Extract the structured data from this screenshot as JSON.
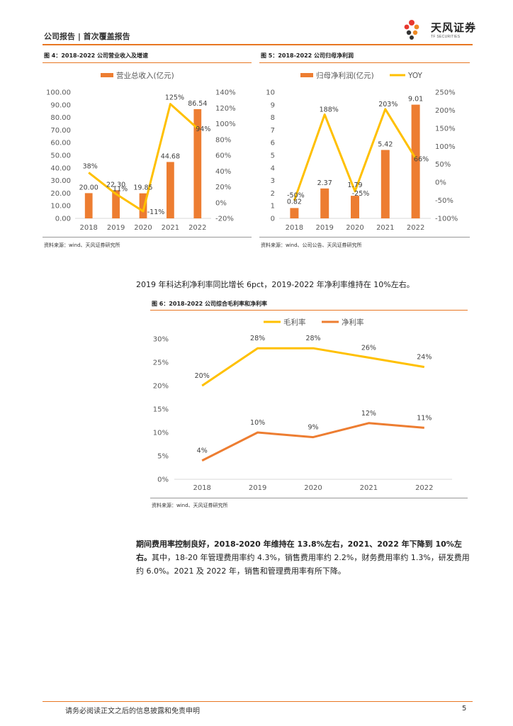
{
  "header": {
    "title": "公司报告 | 首次覆盖报告",
    "logo_name": "天风证券",
    "logo_sub": "TF SECURITIES"
  },
  "fig4": {
    "title": "图 4：2018-2022 公司营业收入及增速",
    "source": "资料来源：wind、天风证券研究所"
  },
  "fig5": {
    "title": "图 5：2018-2022 公司归母净利润",
    "source": "资料来源：wind、公司公告、天风证券研究所"
  },
  "fig6": {
    "title": "图 6：2018-2022 公司综合毛利率和净利率",
    "source": "资料来源：wind、天风证券研究所"
  },
  "text": {
    "para1": "2019 年科达利净利率同比增长 6pct，2019-2022 年净利率维持在 10%左右。",
    "para2_bold": "期间费用率控制良好，2018-2020 年维持在 13.8%左右，2021、2022 年下降到 10%左右。",
    "para2_rest": "其中，18-20 年管理费用率约 4.3%，销售费用率约 2.2%，财务费用率约 1.3%，研发费用约 6.0%。2021 及 2022 年，销售和管理费用率有所下降。"
  },
  "footer": {
    "disclaimer": "请务必阅读正文之后的信息披露和免责申明",
    "page": "5"
  },
  "colors": {
    "bar": "#ed7d31",
    "line": "#ffc000",
    "accent": "#e87722",
    "axis": "#d9d9d9"
  },
  "chart_data": [
    {
      "id": "fig4",
      "type": "bar",
      "categories": [
        "2018",
        "2019",
        "2020",
        "2021",
        "2022"
      ],
      "series": [
        {
          "name": "营业总收入(亿元)",
          "type": "bar",
          "axis": "left",
          "values": [
            20.0,
            22.3,
            19.85,
            44.68,
            86.54
          ],
          "labels": [
            "20.00",
            "22.30",
            "19.85",
            "44.68",
            "86.54"
          ]
        },
        {
          "name": "增速",
          "type": "line",
          "axis": "right",
          "values": [
            38,
            11,
            -11,
            125,
            94
          ],
          "labels": [
            "38%",
            "11%",
            "-11%",
            "125%",
            "94%"
          ]
        }
      ],
      "left_ticks": [
        "100.00",
        "90.00",
        "80.00",
        "70.00",
        "60.00",
        "50.00",
        "40.00",
        "30.00",
        "20.00",
        "10.00",
        "0.00"
      ],
      "right_ticks": [
        "140%",
        "120%",
        "100%",
        "80%",
        "60%",
        "40%",
        "20%",
        "0%",
        "-20%"
      ],
      "ylim_left": [
        0,
        100
      ],
      "ylim_right": [
        -20,
        140
      ],
      "legend": [
        "营业总收入(亿元)"
      ]
    },
    {
      "id": "fig5",
      "type": "bar",
      "categories": [
        "2018",
        "2019",
        "2020",
        "2021",
        "2022"
      ],
      "series": [
        {
          "name": "归母净利润(亿元)",
          "type": "bar",
          "axis": "left",
          "values": [
            0.82,
            2.37,
            1.79,
            5.42,
            9.01
          ],
          "labels": [
            "0.82",
            "2.37",
            "1.79",
            "5.42",
            "9.01"
          ]
        },
        {
          "name": "YOY",
          "type": "line",
          "axis": "right",
          "values": [
            -50,
            188,
            -25,
            203,
            66
          ],
          "labels": [
            "-50%",
            "188%",
            "-25%",
            "203%",
            "66%"
          ]
        }
      ],
      "left_ticks": [
        "10",
        "9",
        "8",
        "7",
        "6",
        "5",
        "4",
        "3",
        "2",
        "1",
        "0"
      ],
      "right_ticks": [
        "250%",
        "200%",
        "150%",
        "100%",
        "50%",
        "0%",
        "-50%",
        "-100%"
      ],
      "ylim_left": [
        0,
        10
      ],
      "ylim_right": [
        -100,
        250
      ],
      "legend": [
        "归母净利润(亿元)",
        "YOY"
      ]
    },
    {
      "id": "fig6",
      "type": "line",
      "categories": [
        "2018",
        "2019",
        "2020",
        "2021",
        "2022"
      ],
      "series": [
        {
          "name": "毛利率",
          "color": "#ffc000",
          "values": [
            20,
            28,
            28,
            26,
            24
          ],
          "labels": [
            "20%",
            "28%",
            "28%",
            "26%",
            "24%"
          ]
        },
        {
          "name": "净利率",
          "color": "#ed7d31",
          "values": [
            4,
            10,
            9,
            12,
            11
          ],
          "labels": [
            "4%",
            "10%",
            "9%",
            "12%",
            "11%"
          ]
        }
      ],
      "left_ticks": [
        "30%",
        "25%",
        "20%",
        "15%",
        "10%",
        "5%",
        "0%"
      ],
      "ylim": [
        0,
        30
      ],
      "legend": [
        "毛利率",
        "净利率"
      ]
    }
  ]
}
